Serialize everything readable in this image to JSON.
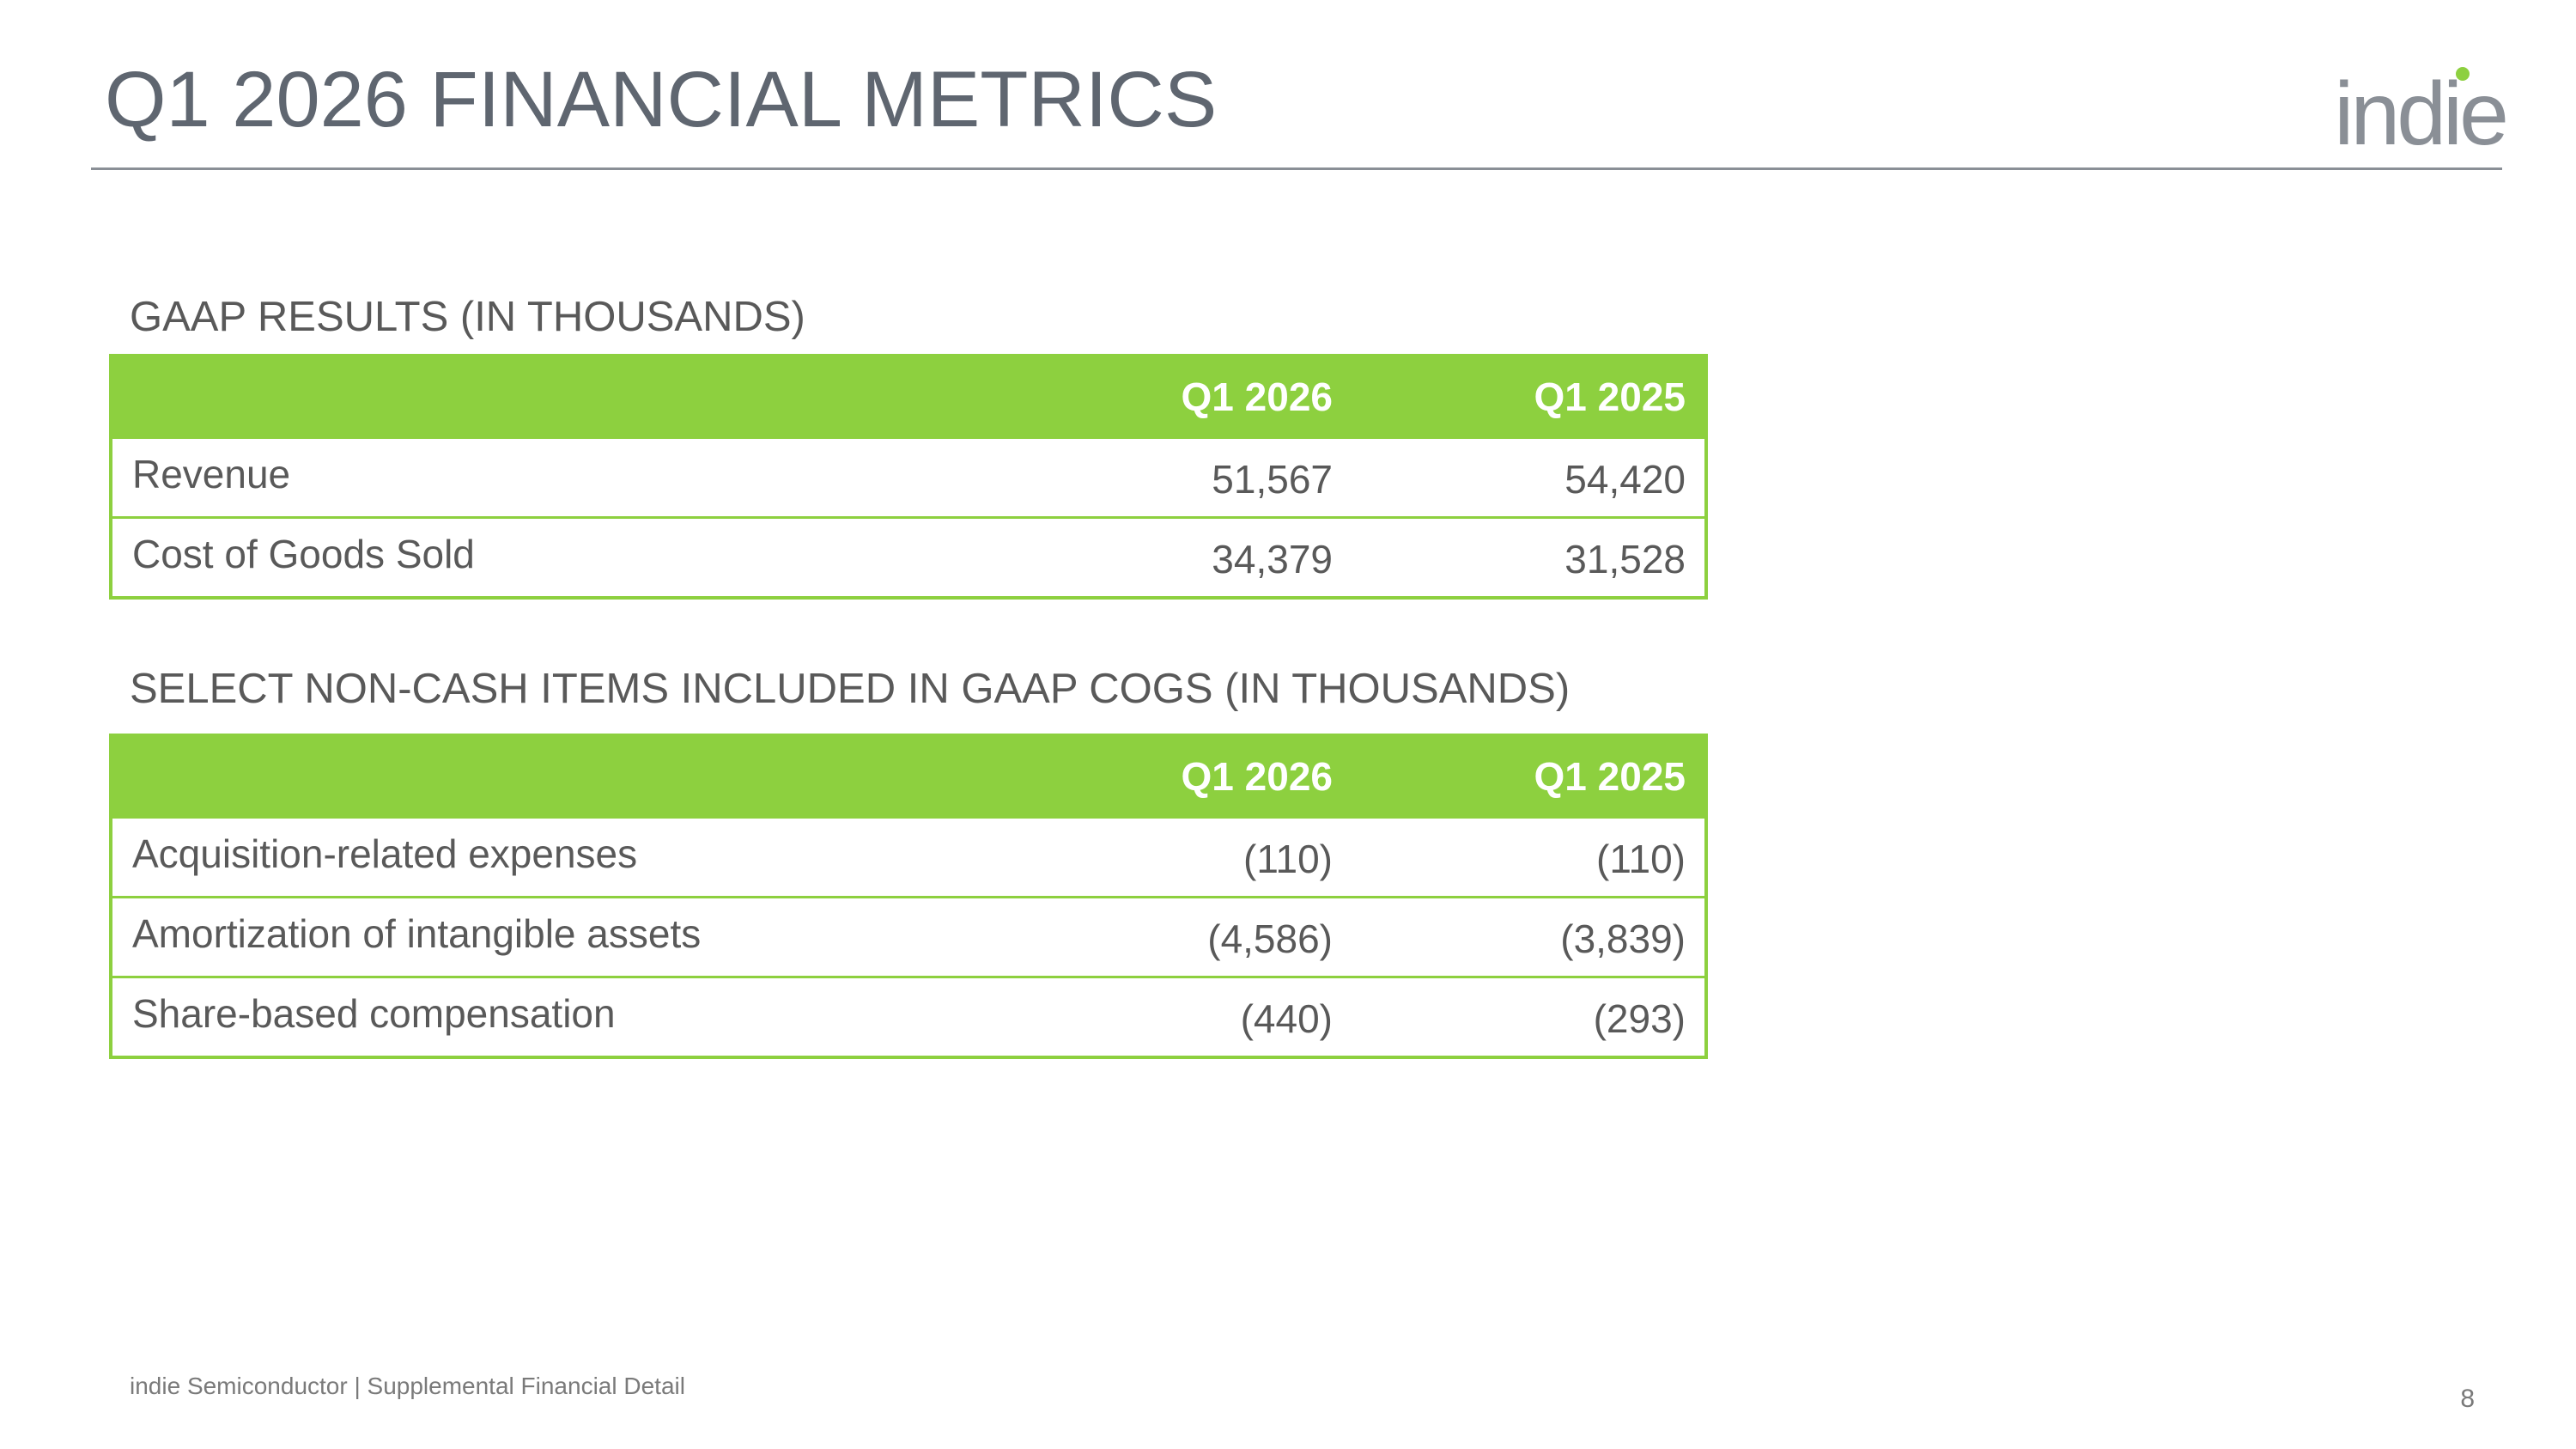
{
  "slide": {
    "title": "Q1 2026 FINANCIAL METRICS",
    "logo_text": "indie",
    "footer": "indie Semiconductor | Supplemental Financial Detail",
    "page_number": "8"
  },
  "colors": {
    "accent_green": "#8dd03f",
    "title_gray": "#5f6670",
    "text_gray": "#595959"
  },
  "gaap": {
    "heading": "GAAP RESULTS (IN THOUSANDS)",
    "columns": [
      "",
      "Q1 2026",
      "Q1 2025"
    ],
    "rows": [
      {
        "label": "Revenue",
        "q1_2026": "51,567",
        "q1_2025": "54,420"
      },
      {
        "label": "Cost of Goods Sold",
        "q1_2026": "34,379",
        "q1_2025": "31,528"
      }
    ]
  },
  "noncash": {
    "heading": "SELECT NON-CASH ITEMS INCLUDED IN GAAP COGS (IN THOUSANDS)",
    "columns": [
      "",
      "Q1 2026",
      "Q1 2025"
    ],
    "rows": [
      {
        "label": "Acquisition-related expenses",
        "q1_2026": "(110)",
        "q1_2025": "(110)"
      },
      {
        "label": "Amortization of intangible assets",
        "q1_2026": "(4,586)",
        "q1_2025": "(3,839)"
      },
      {
        "label": "Share-based compensation",
        "q1_2026": "(440)",
        "q1_2025": "(293)"
      }
    ]
  }
}
